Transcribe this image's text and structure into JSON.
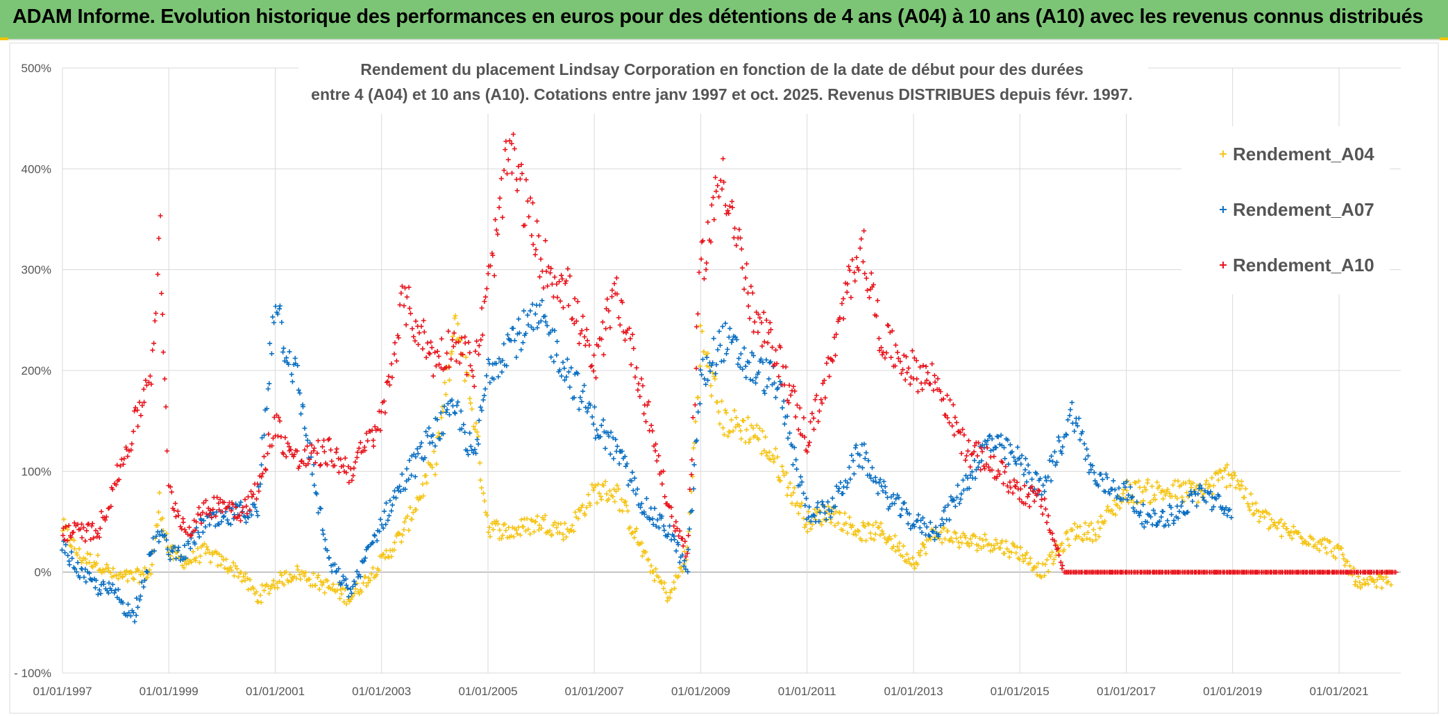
{
  "banner": {
    "title": "ADAM Informe. Evolution historique des performances en euros pour des détentions de 4 ans (A04) à 10 ans (A10) avec les revenus connus distribués"
  },
  "colors": {
    "banner": "#7cc576",
    "A04": "#f5c518",
    "A07": "#0a6fc2",
    "A10": "#e8141c",
    "grid": "#d9d9d9"
  },
  "chart_data": {
    "type": "scatter",
    "title_lines": [
      "Rendement du placement Lindsay Corporation en fonction de la date de début pour des durées",
      "entre 4 (A04) et 10 ans (A10). Cotations entre janv 1997 et oct. 2025. Revenus DISTRIBUES depuis févr. 1997."
    ],
    "y_ticks": [
      "500%",
      "400%",
      "300%",
      "200%",
      "100%",
      "0%",
      "- 100%"
    ],
    "x_ticks": [
      "01/01/1997",
      "01/01/1999",
      "01/01/2001",
      "01/01/2003",
      "01/01/2005",
      "01/01/2007",
      "01/01/2009",
      "01/01/2011",
      "01/01/2013",
      "01/01/2015",
      "01/01/2017",
      "01/01/2019",
      "01/01/2021"
    ],
    "ylim": [
      -100,
      500
    ],
    "xlim": [
      "1997-01-01",
      "2022-03-01"
    ],
    "grid": true,
    "legend_position": "right",
    "marker": "+",
    "series": [
      {
        "name": "Rendement_A04",
        "color": "#f5c518",
        "points": [
          [
            "1997-01-01",
            45
          ],
          [
            "1997-05-01",
            15
          ],
          [
            "1997-09-01",
            10
          ],
          [
            "1998-01-01",
            -5
          ],
          [
            "1998-05-01",
            -5
          ],
          [
            "1998-09-01",
            0
          ],
          [
            "1998-11-01",
            70
          ],
          [
            "1999-01-01",
            20
          ],
          [
            "1999-05-01",
            10
          ],
          [
            "1999-09-01",
            20
          ],
          [
            "2000-01-01",
            10
          ],
          [
            "2000-05-01",
            0
          ],
          [
            "2000-09-01",
            -25
          ],
          [
            "2001-01-01",
            -10
          ],
          [
            "2001-06-01",
            0
          ],
          [
            "2002-01-01",
            -15
          ],
          [
            "2002-06-01",
            -25
          ],
          [
            "2003-01-01",
            10
          ],
          [
            "2003-06-01",
            40
          ],
          [
            "2004-01-01",
            110
          ],
          [
            "2004-06-01",
            250
          ],
          [
            "2004-10-01",
            150
          ],
          [
            "2005-01-01",
            45
          ],
          [
            "2005-06-01",
            40
          ],
          [
            "2006-01-01",
            50
          ],
          [
            "2006-07-01",
            40
          ],
          [
            "2007-01-01",
            80
          ],
          [
            "2007-06-01",
            80
          ],
          [
            "2008-01-01",
            10
          ],
          [
            "2008-06-01",
            -25
          ],
          [
            "2008-10-01",
            20
          ],
          [
            "2009-01-01",
            230
          ],
          [
            "2009-06-01",
            150
          ],
          [
            "2010-01-01",
            140
          ],
          [
            "2010-06-01",
            110
          ],
          [
            "2011-01-01",
            50
          ],
          [
            "2011-06-01",
            60
          ],
          [
            "2012-01-01",
            40
          ],
          [
            "2012-06-01",
            40
          ],
          [
            "2013-01-01",
            10
          ],
          [
            "2013-06-01",
            40
          ],
          [
            "2014-01-01",
            30
          ],
          [
            "2014-06-01",
            30
          ],
          [
            "2015-01-01",
            20
          ],
          [
            "2015-06-01",
            0
          ],
          [
            "2016-01-01",
            40
          ],
          [
            "2016-06-01",
            40
          ],
          [
            "2017-01-01",
            80
          ],
          [
            "2017-06-01",
            80
          ],
          [
            "2018-01-01",
            80
          ],
          [
            "2018-06-01",
            80
          ],
          [
            "2019-01-01",
            100
          ],
          [
            "2019-06-01",
            60
          ],
          [
            "2020-01-01",
            40
          ],
          [
            "2020-06-01",
            35
          ],
          [
            "2021-01-01",
            20
          ],
          [
            "2021-06-01",
            -15
          ],
          [
            "2022-01-01",
            -5
          ]
        ]
      },
      {
        "name": "Rendement_A07",
        "color": "#0a6fc2",
        "points": [
          [
            "1997-01-01",
            25
          ],
          [
            "1997-05-01",
            0
          ],
          [
            "1997-09-01",
            -15
          ],
          [
            "1998-01-01",
            -20
          ],
          [
            "1998-05-01",
            -45
          ],
          [
            "1998-09-01",
            20
          ],
          [
            "1998-11-01",
            40
          ],
          [
            "1999-01-01",
            20
          ],
          [
            "1999-05-01",
            20
          ],
          [
            "1999-09-01",
            50
          ],
          [
            "2000-01-01",
            50
          ],
          [
            "2000-05-01",
            60
          ],
          [
            "2000-09-01",
            60
          ],
          [
            "2001-01-01",
            280
          ],
          [
            "2001-03-01",
            230
          ],
          [
            "2001-06-01",
            190
          ],
          [
            "2002-01-01",
            10
          ],
          [
            "2002-06-01",
            -20
          ],
          [
            "2003-01-01",
            50
          ],
          [
            "2003-06-01",
            90
          ],
          [
            "2004-01-01",
            140
          ],
          [
            "2004-06-01",
            160
          ],
          [
            "2004-10-01",
            110
          ],
          [
            "2005-01-01",
            200
          ],
          [
            "2005-06-01",
            230
          ],
          [
            "2006-01-01",
            250
          ],
          [
            "2006-07-01",
            200
          ],
          [
            "2007-01-01",
            150
          ],
          [
            "2007-06-01",
            120
          ],
          [
            "2008-01-01",
            60
          ],
          [
            "2008-06-01",
            40
          ],
          [
            "2008-10-01",
            0
          ],
          [
            "2009-01-01",
            190
          ],
          [
            "2009-06-01",
            230
          ],
          [
            "2010-01-01",
            200
          ],
          [
            "2010-06-01",
            190
          ],
          [
            "2011-01-01",
            60
          ],
          [
            "2011-06-01",
            60
          ],
          [
            "2012-01-01",
            120
          ],
          [
            "2012-06-01",
            80
          ],
          [
            "2013-01-01",
            50
          ],
          [
            "2013-06-01",
            40
          ],
          [
            "2014-01-01",
            90
          ],
          [
            "2014-06-01",
            130
          ],
          [
            "2015-01-01",
            110
          ],
          [
            "2015-06-01",
            80
          ],
          [
            "2016-01-01",
            160
          ],
          [
            "2016-06-01",
            90
          ],
          [
            "2017-01-01",
            80
          ],
          [
            "2017-06-01",
            50
          ],
          [
            "2018-01-01",
            60
          ],
          [
            "2018-06-01",
            80
          ],
          [
            "2019-01-01",
            55
          ]
        ]
      },
      {
        "name": "Rendement_A10",
        "color": "#e8141c",
        "points": [
          [
            "1997-01-01",
            40
          ],
          [
            "1997-05-01",
            40
          ],
          [
            "1997-09-01",
            40
          ],
          [
            "1998-01-01",
            90
          ],
          [
            "1998-05-01",
            140
          ],
          [
            "1998-09-01",
            200
          ],
          [
            "1998-11-01",
            330
          ],
          [
            "1999-01-01",
            80
          ],
          [
            "1999-05-01",
            40
          ],
          [
            "1999-09-01",
            60
          ],
          [
            "2000-01-01",
            70
          ],
          [
            "2000-05-01",
            60
          ],
          [
            "2000-09-01",
            80
          ],
          [
            "2001-01-01",
            150
          ],
          [
            "2001-03-01",
            130
          ],
          [
            "2001-06-01",
            110
          ],
          [
            "2002-01-01",
            120
          ],
          [
            "2002-06-01",
            100
          ],
          [
            "2003-01-01",
            150
          ],
          [
            "2003-06-01",
            270
          ],
          [
            "2004-01-01",
            210
          ],
          [
            "2004-06-01",
            230
          ],
          [
            "2004-10-01",
            200
          ],
          [
            "2005-01-01",
            280
          ],
          [
            "2005-06-01",
            420
          ],
          [
            "2006-01-01",
            310
          ],
          [
            "2006-07-01",
            280
          ],
          [
            "2007-01-01",
            200
          ],
          [
            "2007-06-01",
            280
          ],
          [
            "2008-01-01",
            160
          ],
          [
            "2008-06-01",
            60
          ],
          [
            "2008-10-01",
            20
          ],
          [
            "2009-01-01",
            300
          ],
          [
            "2009-06-01",
            400
          ],
          [
            "2010-01-01",
            250
          ],
          [
            "2010-06-01",
            220
          ],
          [
            "2011-01-01",
            130
          ],
          [
            "2011-06-01",
            200
          ],
          [
            "2012-01-01",
            330
          ],
          [
            "2012-06-01",
            230
          ],
          [
            "2013-01-01",
            200
          ],
          [
            "2013-06-01",
            190
          ],
          [
            "2014-01-01",
            120
          ],
          [
            "2014-06-01",
            110
          ],
          [
            "2015-01-01",
            80
          ],
          [
            "2015-06-01",
            70
          ],
          [
            "2015-11-01",
            0
          ],
          [
            "2016-06-01",
            0
          ],
          [
            "2017-06-01",
            0
          ],
          [
            "2018-06-01",
            0
          ],
          [
            "2019-06-01",
            0
          ],
          [
            "2020-06-01",
            0
          ],
          [
            "2021-06-01",
            0
          ],
          [
            "2022-02-01",
            0
          ]
        ]
      }
    ]
  }
}
